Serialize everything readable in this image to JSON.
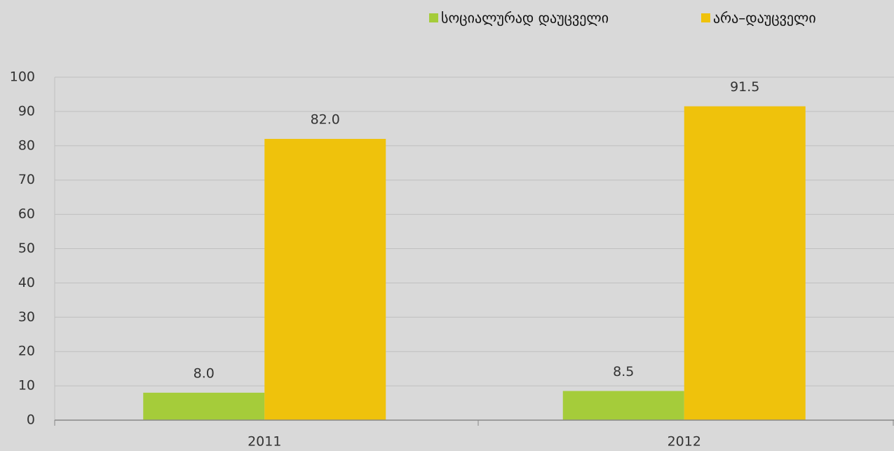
{
  "chart_data": {
    "type": "bar",
    "categories": [
      "2011",
      "2012"
    ],
    "series": [
      {
        "name": "სოციალურად დაუცველი",
        "color": "#a5cc3a",
        "values": [
          8,
          8.5
        ],
        "value_labels": [
          "8.0",
          "8.5"
        ]
      },
      {
        "name": "არა–დაუცველი",
        "color": "#efc20c",
        "values": [
          82,
          91.5
        ],
        "value_labels": [
          "82.0",
          "91.5"
        ]
      }
    ],
    "ylim": [
      0,
      100
    ],
    "yticks": [
      0,
      10,
      20,
      30,
      40,
      50,
      60,
      70,
      80,
      90,
      100
    ],
    "grid": true,
    "legend": "top"
  }
}
